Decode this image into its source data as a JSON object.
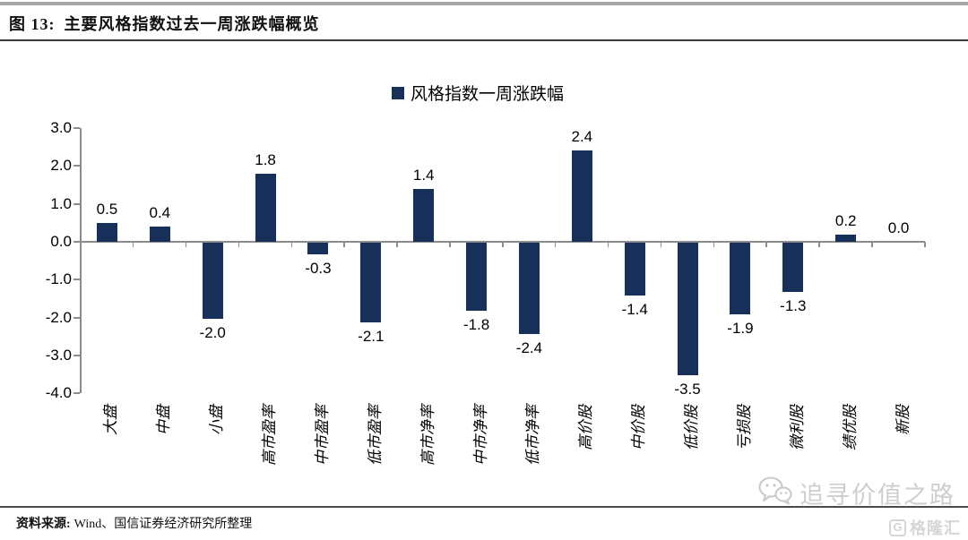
{
  "figure": {
    "title_prefix": "图 13:",
    "title": "主要风格指数过去一周涨跌幅概览"
  },
  "chart_data": {
    "type": "bar",
    "title": "主要风格指数过去一周涨跌幅概览",
    "legend": "风格指数一周涨跌幅",
    "legend_position": "top-center",
    "categories": [
      "大盘",
      "中盘",
      "小盘",
      "高市盈率",
      "中市盈率",
      "低市盈率",
      "高市净率",
      "中市净率",
      "低市净率",
      "高价股",
      "中价股",
      "低价股",
      "亏损股",
      "微利股",
      "绩优股",
      "新股"
    ],
    "values": [
      0.5,
      0.4,
      -2.0,
      1.8,
      -0.3,
      -2.1,
      1.4,
      -1.8,
      -2.4,
      2.4,
      -1.4,
      -3.5,
      -1.9,
      -1.3,
      0.2,
      0.0
    ],
    "ylim": [
      -4.0,
      3.0
    ],
    "ytick_step": 1.0,
    "ytick_labels": [
      "3.0",
      "2.0",
      "1.0",
      "0.0",
      "-1.0",
      "-2.0",
      "-3.0",
      "-4.0"
    ],
    "grid": false,
    "data_labels": true,
    "bar_color": "#16305A",
    "axis_color": "#8C8C8C"
  },
  "source": {
    "label": "资料来源:",
    "text": "Wind、国信证券经济研究所整理"
  },
  "watermark": {
    "icon": "wechat-icon",
    "text": "追寻价值之路"
  },
  "logo": {
    "icon": "glh-logo-icon",
    "monogram": "G",
    "text": "格隆汇"
  }
}
